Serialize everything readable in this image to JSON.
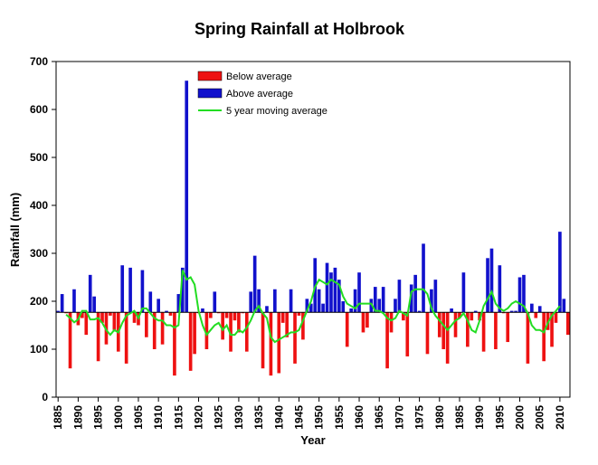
{
  "chart_data": {
    "type": "bar",
    "title": "Spring Rainfall at Holbrook",
    "xlabel": "Year",
    "ylabel": "Rainfall (mm)",
    "xlim": [
      1884.5,
      2012.5
    ],
    "ylim": [
      0,
      700
    ],
    "baseline": 177,
    "grid": false,
    "legend_position": "top-center",
    "y_ticks": [
      0,
      100,
      200,
      300,
      400,
      500,
      600,
      700
    ],
    "x_ticks": [
      1885,
      1890,
      1895,
      1900,
      1905,
      1910,
      1915,
      1920,
      1925,
      1930,
      1935,
      1940,
      1945,
      1950,
      1955,
      1960,
      1965,
      1970,
      1975,
      1980,
      1985,
      1990,
      1995,
      2000,
      2005,
      2010
    ],
    "legend": [
      {
        "label": "Below average",
        "color": "#ee1111"
      },
      {
        "label": "Above average",
        "color": "#1111cc"
      },
      {
        "label": "5 year moving average",
        "color": "#22dd22"
      }
    ],
    "colors": {
      "below": "#ee1111",
      "above": "#1111cc",
      "moving_average": "#22dd22"
    },
    "x": [
      1885,
      1886,
      1887,
      1888,
      1889,
      1890,
      1891,
      1892,
      1893,
      1894,
      1895,
      1896,
      1897,
      1898,
      1899,
      1900,
      1901,
      1902,
      1903,
      1904,
      1905,
      1906,
      1907,
      1908,
      1909,
      1910,
      1911,
      1912,
      1913,
      1914,
      1915,
      1916,
      1917,
      1918,
      1919,
      1920,
      1921,
      1922,
      1923,
      1924,
      1925,
      1926,
      1927,
      1928,
      1929,
      1930,
      1931,
      1932,
      1933,
      1934,
      1935,
      1936,
      1937,
      1938,
      1939,
      1940,
      1941,
      1942,
      1943,
      1944,
      1945,
      1946,
      1947,
      1948,
      1949,
      1950,
      1951,
      1952,
      1953,
      1954,
      1955,
      1956,
      1957,
      1958,
      1959,
      1960,
      1961,
      1962,
      1963,
      1964,
      1965,
      1966,
      1967,
      1968,
      1969,
      1970,
      1971,
      1972,
      1973,
      1974,
      1975,
      1976,
      1977,
      1978,
      1979,
      1980,
      1981,
      1982,
      1983,
      1984,
      1985,
      1986,
      1987,
      1988,
      1989,
      1990,
      1991,
      1992,
      1993,
      1994,
      1995,
      1996,
      1997,
      1998,
      1999,
      2000,
      2001,
      2002,
      2003,
      2004,
      2005,
      2006,
      2007,
      2008,
      2009,
      2010,
      2011,
      2012
    ],
    "rainfall": [
      180,
      215,
      175,
      60,
      225,
      150,
      165,
      130,
      255,
      210,
      75,
      155,
      110,
      170,
      140,
      95,
      275,
      70,
      270,
      155,
      150,
      265,
      125,
      220,
      100,
      205,
      110,
      180,
      170,
      45,
      215,
      270,
      660,
      55,
      90,
      175,
      185,
      100,
      165,
      220,
      175,
      120,
      165,
      95,
      160,
      135,
      175,
      95,
      220,
      295,
      225,
      60,
      190,
      45,
      225,
      50,
      155,
      125,
      225,
      70,
      170,
      120,
      205,
      195,
      290,
      225,
      195,
      280,
      260,
      270,
      245,
      200,
      105,
      185,
      225,
      260,
      135,
      145,
      205,
      230,
      205,
      230,
      60,
      135,
      205,
      245,
      160,
      85,
      235,
      255,
      180,
      320,
      90,
      225,
      245,
      125,
      100,
      70,
      185,
      125,
      165,
      260,
      105,
      160,
      180,
      160,
      95,
      290,
      310,
      100,
      275,
      175,
      115,
      180,
      180,
      250,
      255,
      70,
      195,
      165,
      190,
      75,
      140,
      105,
      155,
      345,
      205,
      130
    ],
    "moving_average": [
      null,
      null,
      172,
      165,
      156,
      162,
      180,
      180,
      162,
      162,
      165,
      155,
      140,
      130,
      140,
      135,
      155,
      170,
      175,
      180,
      165,
      185,
      185,
      175,
      165,
      160,
      160,
      150,
      150,
      145,
      150,
      265,
      245,
      250,
      235,
      180,
      150,
      130,
      140,
      150,
      155,
      140,
      150,
      130,
      130,
      140,
      135,
      145,
      160,
      180,
      190,
      175,
      165,
      125,
      115,
      120,
      125,
      130,
      135,
      135,
      140,
      160,
      180,
      200,
      230,
      245,
      240,
      235,
      245,
      240,
      235,
      210,
      195,
      190,
      185,
      195,
      195,
      195,
      195,
      180,
      180,
      175,
      165,
      160,
      165,
      180,
      175,
      170,
      220,
      225,
      225,
      225,
      215,
      185,
      170,
      160,
      150,
      140,
      150,
      160,
      165,
      175,
      160,
      140,
      135,
      160,
      190,
      205,
      220,
      195,
      185,
      180,
      185,
      195,
      200,
      195,
      190,
      175,
      150,
      140,
      140,
      135,
      155,
      170,
      180,
      190,
      null,
      null
    ]
  }
}
